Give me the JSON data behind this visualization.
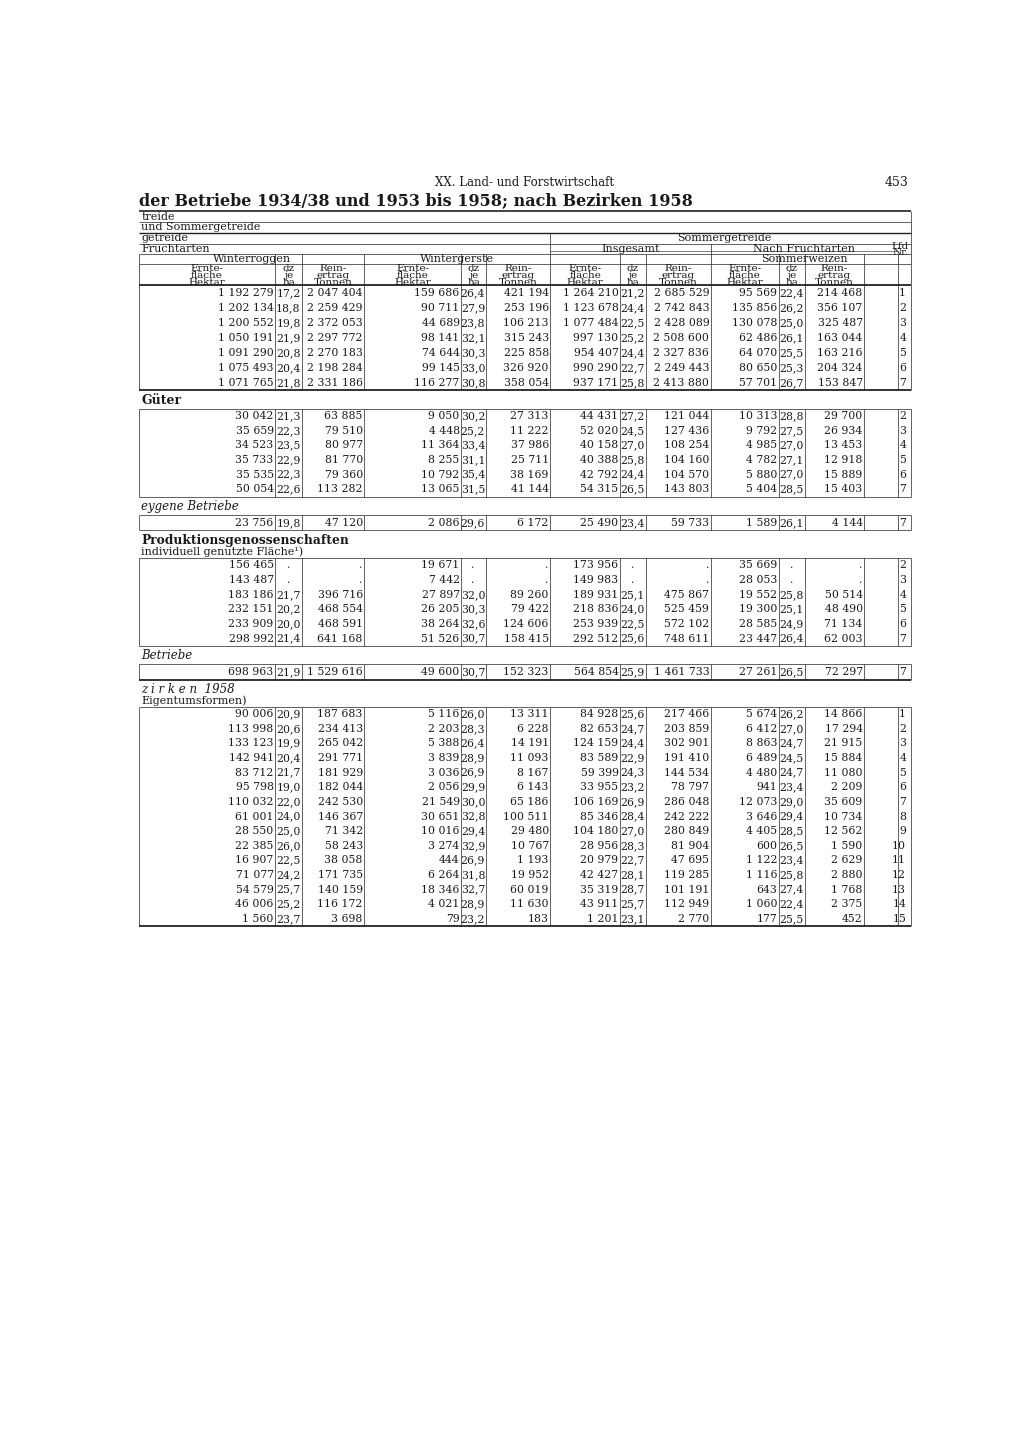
{
  "page_header_center": "XX. Land- und Forstwirtschaft",
  "page_number": "453",
  "title_bold": "der Betriebe 1934/38 und 1953 bis 1958; nach Bezirken 1958",
  "header_row1_left": "treide",
  "header_row2_left": "und Sommergetreide",
  "header_row3_left": "getreide",
  "header_row3_right": "Sommergetreide",
  "header_row4_left": "Fruchtarten",
  "header_row4_mid": "Insgesamt",
  "header_row4_right": "Nach Fruchtarten",
  "sub_header_winterroggen": "Winterroggen",
  "sub_header_wintergerste": "Wintergerste",
  "sub_header_sommerweizen": "Sommerweizen",
  "data_main": [
    [
      "1 192 279",
      "17,2",
      "2 047 404",
      "159 686",
      "26,4",
      "421 194",
      "1 264 210",
      "21,2",
      "2 685 529",
      "95 569",
      "22,4",
      "214 468",
      "1"
    ],
    [
      "1 202 134",
      "18,8",
      "2 259 429",
      "90 711",
      "27,9",
      "253 196",
      "1 123 678",
      "24,4",
      "2 742 843",
      "135 856",
      "26,2",
      "356 107",
      "2"
    ],
    [
      "1 200 552",
      "19,8",
      "2 372 053",
      "44 689",
      "23,8",
      "106 213",
      "1 077 484",
      "22,5",
      "2 428 089",
      "130 078",
      "25,0",
      "325 487",
      "3"
    ],
    [
      "1 050 191",
      "21,9",
      "2 297 772",
      "98 141",
      "32,1",
      "315 243",
      "997 130",
      "25,2",
      "2 508 600",
      "62 486",
      "26,1",
      "163 044",
      "4"
    ],
    [
      "1 091 290",
      "20,8",
      "2 270 183",
      "74 644",
      "30,3",
      "225 858",
      "954 407",
      "24,4",
      "2 327 836",
      "64 070",
      "25,5",
      "163 216",
      "5"
    ],
    [
      "1 075 493",
      "20,4",
      "2 198 284",
      "99 145",
      "33,0",
      "326 920",
      "990 290",
      "22,7",
      "2 249 443",
      "80 650",
      "25,3",
      "204 324",
      "6"
    ],
    [
      "1 071 765",
      "21,8",
      "2 331 186",
      "116 277",
      "30,8",
      "358 054",
      "937 171",
      "25,8",
      "2 413 880",
      "57 701",
      "26,7",
      "153 847",
      "7"
    ]
  ],
  "data_gueter": [
    [
      "30 042",
      "21,3",
      "63 885",
      "9 050",
      "30,2",
      "27 313",
      "44 431",
      "27,2",
      "121 044",
      "10 313",
      "28,8",
      "29 700",
      "2"
    ],
    [
      "35 659",
      "22,3",
      "79 510",
      "4 448",
      "25,2",
      "11 222",
      "52 020",
      "24,5",
      "127 436",
      "9 792",
      "27,5",
      "26 934",
      "3"
    ],
    [
      "34 523",
      "23,5",
      "80 977",
      "11 364",
      "33,4",
      "37 986",
      "40 158",
      "27,0",
      "108 254",
      "4 985",
      "27,0",
      "13 453",
      "4"
    ],
    [
      "35 733",
      "22,9",
      "81 770",
      "8 255",
      "31,1",
      "25 711",
      "40 388",
      "25,8",
      "104 160",
      "4 782",
      "27,1",
      "12 918",
      "5"
    ],
    [
      "35 535",
      "22,3",
      "79 360",
      "10 792",
      "35,4",
      "38 169",
      "42 792",
      "24,4",
      "104 570",
      "5 880",
      "27,0",
      "15 889",
      "6"
    ],
    [
      "50 054",
      "22,6",
      "113 282",
      "13 065",
      "31,5",
      "41 144",
      "54 315",
      "26,5",
      "143 803",
      "5 404",
      "28,5",
      "15 403",
      "7"
    ]
  ],
  "data_eigene": [
    [
      "23 756",
      "19,8",
      "47 120",
      "2 086",
      "29,6",
      "6 172",
      "25 490",
      "23,4",
      "59 733",
      "1 589",
      "26,1",
      "4 144",
      "7"
    ]
  ],
  "data_prod_ind": [
    [
      "156 465",
      ".",
      ".",
      "19 671",
      ".",
      ".",
      "173 956",
      ".",
      ".",
      "35 669",
      ".",
      ".",
      "2"
    ],
    [
      "143 487",
      ".",
      ".",
      "7 442",
      ".",
      ".",
      "149 983",
      ".",
      ".",
      "28 053",
      ".",
      ".",
      "3"
    ],
    [
      "183 186",
      "21,7",
      "396 716",
      "27 897",
      "32,0",
      "89 260",
      "189 931",
      "25,1",
      "475 867",
      "19 552",
      "25,8",
      "50 514",
      "4"
    ],
    [
      "232 151",
      "20,2",
      "468 554",
      "26 205",
      "30,3",
      "79 422",
      "218 836",
      "24,0",
      "525 459",
      "19 300",
      "25,1",
      "48 490",
      "5"
    ],
    [
      "233 909",
      "20,0",
      "468 591",
      "38 264",
      "32,6",
      "124 606",
      "253 939",
      "22,5",
      "572 102",
      "28 585",
      "24,9",
      "71 134",
      "6"
    ],
    [
      "298 992",
      "21,4",
      "641 168",
      "51 526",
      "30,7",
      "158 415",
      "292 512",
      "25,6",
      "748 611",
      "23 447",
      "26,4",
      "62 003",
      "7"
    ]
  ],
  "data_betriebe": [
    [
      "698 963",
      "21,9",
      "1 529 616",
      "49 600",
      "30,7",
      "152 323",
      "564 854",
      "25,9",
      "1 461 733",
      "27 261",
      "26,5",
      "72 297",
      "7"
    ]
  ],
  "data_zirken": [
    [
      "90 006",
      "20,9",
      "187 683",
      "5 116",
      "26,0",
      "13 311",
      "84 928",
      "25,6",
      "217 466",
      "5 674",
      "26,2",
      "14 866",
      "1"
    ],
    [
      "113 998",
      "20,6",
      "234 413",
      "2 203",
      "28,3",
      "6 228",
      "82 653",
      "24,7",
      "203 859",
      "6 412",
      "27,0",
      "17 294",
      "2"
    ],
    [
      "133 123",
      "19,9",
      "265 042",
      "5 388",
      "26,4",
      "14 191",
      "124 159",
      "24,4",
      "302 901",
      "8 863",
      "24,7",
      "21 915",
      "3"
    ],
    [
      "142 941",
      "20,4",
      "291 771",
      "3 839",
      "28,9",
      "11 093",
      "83 589",
      "22,9",
      "191 410",
      "6 489",
      "24,5",
      "15 884",
      "4"
    ],
    [
      "83 712",
      "21,7",
      "181 929",
      "3 036",
      "26,9",
      "8 167",
      "59 399",
      "24,3",
      "144 534",
      "4 480",
      "24,7",
      "11 080",
      "5"
    ],
    [
      "95 798",
      "19,0",
      "182 044",
      "2 056",
      "29,9",
      "6 143",
      "33 955",
      "23,2",
      "78 797",
      "941",
      "23,4",
      "2 209",
      "6"
    ],
    [
      "110 032",
      "22,0",
      "242 530",
      "21 549",
      "30,0",
      "65 186",
      "106 169",
      "26,9",
      "286 048",
      "12 073",
      "29,0",
      "35 609",
      "7"
    ],
    [
      "61 001",
      "24,0",
      "146 367",
      "30 651",
      "32,8",
      "100 511",
      "85 346",
      "28,4",
      "242 222",
      "3 646",
      "29,4",
      "10 734",
      "8"
    ],
    [
      "28 550",
      "25,0",
      "71 342",
      "10 016",
      "29,4",
      "29 480",
      "104 180",
      "27,0",
      "280 849",
      "4 405",
      "28,5",
      "12 562",
      "9"
    ],
    [
      "22 385",
      "26,0",
      "58 243",
      "3 274",
      "32,9",
      "10 767",
      "28 956",
      "28,3",
      "81 904",
      "600",
      "26,5",
      "1 590",
      "10"
    ],
    [
      "16 907",
      "22,5",
      "38 058",
      "444",
      "26,9",
      "1 193",
      "20 979",
      "22,7",
      "47 695",
      "1 122",
      "23,4",
      "2 629",
      "11"
    ],
    [
      "71 077",
      "24,2",
      "171 735",
      "6 264",
      "31,8",
      "19 952",
      "42 427",
      "28,1",
      "119 285",
      "1 116",
      "25,8",
      "2 880",
      "12"
    ],
    [
      "54 579",
      "25,7",
      "140 159",
      "18 346",
      "32,7",
      "60 019",
      "35 319",
      "28,7",
      "101 191",
      "643",
      "27,4",
      "1 768",
      "13"
    ],
    [
      "46 006",
      "25,2",
      "116 172",
      "4 021",
      "28,9",
      "11 630",
      "43 911",
      "25,7",
      "112 949",
      "1 060",
      "22,4",
      "2 375",
      "14"
    ],
    [
      "1 560",
      "23,7",
      "3 698",
      "79",
      "23,2",
      "183",
      "1 201",
      "23,1",
      "2 770",
      "177",
      "25,5",
      "452",
      "15"
    ]
  ],
  "bg_color": "#ffffff",
  "text_color": "#1a1a1a",
  "line_color": "#222222"
}
